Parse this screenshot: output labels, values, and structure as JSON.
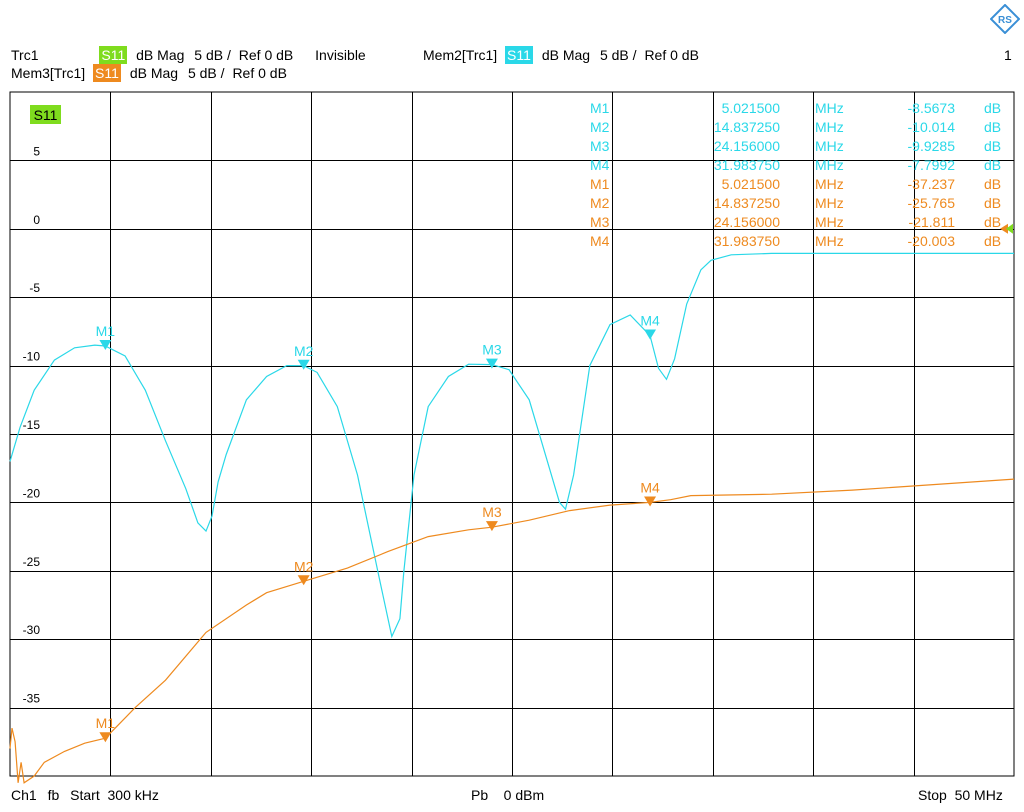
{
  "header": {
    "trc1": {
      "name": "Trc1",
      "badge": "S11",
      "badge_color": "#7fdc1e",
      "format": "dB Mag",
      "scale": "5 dB /",
      "ref": "Ref 0 dB",
      "state": "Invisible"
    },
    "mem2": {
      "name": "Mem2[Trc1]",
      "badge": "S11",
      "badge_color": "#2ad8e8",
      "format": "dB Mag",
      "scale": "5 dB /",
      "ref": "Ref 0 dB"
    },
    "mem3": {
      "name": "Mem3[Trc1]",
      "badge": "S11",
      "badge_color": "#ee8a1f",
      "format": "dB Mag",
      "scale": "5 dB /",
      "ref": "Ref 0 dB"
    },
    "window_number": "1",
    "logo": "rohde-schwarz-logo"
  },
  "footer": {
    "channel": "Ch1",
    "mode": "fb",
    "start": "Start  300 kHz",
    "power": "Pb    0 dBm",
    "stop": "Stop  50 MHz"
  },
  "chart_data": {
    "type": "line",
    "title": "",
    "xlabel": "",
    "ylabel": "",
    "x_unit": "MHz",
    "xlim": [
      0.3,
      50
    ],
    "ylim": [
      -40,
      10
    ],
    "yticks": [
      5,
      0,
      -5,
      -10,
      -15,
      -20,
      -25,
      -30,
      -35
    ],
    "grid": true,
    "active_trace_label": "S11",
    "series": [
      {
        "name": "Mem2[Trc1]",
        "color": "#2ad8e8",
        "x": [
          0.3,
          0.8,
          1.5,
          2.5,
          3.5,
          4.5,
          5.02,
          6.0,
          7.0,
          8.0,
          9.0,
          9.6,
          10.0,
          10.3,
          10.6,
          11.0,
          12.0,
          13.0,
          14.0,
          14.84,
          15.5,
          16.5,
          17.5,
          18.5,
          19.2,
          19.6,
          19.8,
          20.3,
          21.0,
          22.0,
          23.0,
          24.16,
          25.0,
          26.0,
          27.0,
          27.5,
          27.8,
          28.2,
          29.0,
          30.0,
          31.0,
          31.98,
          32.4,
          32.8,
          33.2,
          33.8,
          34.5,
          35.0,
          36.0,
          38.0,
          42.0,
          46.0,
          50.0
        ],
        "values": [
          -17.0,
          -14.5,
          -11.8,
          -9.6,
          -8.7,
          -8.5,
          -8.57,
          -9.3,
          -11.8,
          -15.5,
          -19.0,
          -21.5,
          -22.1,
          -21.0,
          -18.5,
          -16.5,
          -12.5,
          -10.8,
          -10.0,
          -10.01,
          -10.5,
          -13.0,
          -18.0,
          -25.0,
          -29.8,
          -28.5,
          -25.0,
          -18.0,
          -13.0,
          -10.8,
          -9.9,
          -9.93,
          -10.3,
          -12.5,
          -17.5,
          -20.0,
          -20.5,
          -18.0,
          -10.0,
          -7.0,
          -6.3,
          -7.8,
          -10.2,
          -11.0,
          -9.5,
          -5.5,
          -3.0,
          -2.3,
          -1.9,
          -1.8,
          -1.8,
          -1.8,
          -1.8
        ]
      },
      {
        "name": "Mem3[Trc1]",
        "color": "#ee8a1f",
        "x": [
          0.3,
          0.4,
          0.55,
          0.7,
          0.85,
          1.0,
          1.5,
          2.0,
          3.0,
          4.0,
          5.02,
          6.5,
          8.0,
          10.0,
          12.0,
          13.0,
          14.84,
          17.0,
          19.0,
          21.0,
          23.0,
          24.16,
          26.0,
          28.0,
          30.0,
          31.98,
          33.0,
          34.0,
          38.0,
          42.0,
          46.0,
          50.0
        ],
        "values": [
          -38.0,
          -36.5,
          -37.5,
          -40.5,
          -39.0,
          -40.5,
          -40.0,
          -39.0,
          -38.2,
          -37.6,
          -37.24,
          -35.0,
          -33.0,
          -29.5,
          -27.5,
          -26.6,
          -25.77,
          -24.8,
          -23.6,
          -22.5,
          -22.0,
          -21.81,
          -21.3,
          -20.6,
          -20.2,
          -20.0,
          -19.8,
          -19.5,
          -19.4,
          -19.1,
          -18.7,
          -18.3
        ]
      }
    ],
    "markers": [
      {
        "trace": "Mem2[Trc1]",
        "label": "M1",
        "x": 5.0215,
        "y": -8.5673
      },
      {
        "trace": "Mem2[Trc1]",
        "label": "M2",
        "x": 14.83725,
        "y": -10.014
      },
      {
        "trace": "Mem2[Trc1]",
        "label": "M3",
        "x": 24.156,
        "y": -9.9285
      },
      {
        "trace": "Mem2[Trc1]",
        "label": "M4",
        "x": 31.98375,
        "y": -7.7992
      },
      {
        "trace": "Mem3[Trc1]",
        "label": "M1",
        "x": 5.0215,
        "y": -37.237
      },
      {
        "trace": "Mem3[Trc1]",
        "label": "M2",
        "x": 14.83725,
        "y": -25.765
      },
      {
        "trace": "Mem3[Trc1]",
        "label": "M3",
        "x": 24.156,
        "y": -21.811
      },
      {
        "trace": "Mem3[Trc1]",
        "label": "M4",
        "x": 31.98375,
        "y": -20.003
      }
    ],
    "marker_table": [
      {
        "label": "M1",
        "freq": "5.021500",
        "unit": "MHz",
        "value": "-8.5673",
        "vunit": "dB",
        "color": "#2ad8e8"
      },
      {
        "label": "M2",
        "freq": "14.837250",
        "unit": "MHz",
        "value": "-10.014",
        "vunit": "dB",
        "color": "#2ad8e8"
      },
      {
        "label": "M3",
        "freq": "24.156000",
        "unit": "MHz",
        "value": "-9.9285",
        "vunit": "dB",
        "color": "#2ad8e8"
      },
      {
        "label": "M4",
        "freq": "31.983750",
        "unit": "MHz",
        "value": "-7.7992",
        "vunit": "dB",
        "color": "#2ad8e8"
      },
      {
        "label": "M1",
        "freq": "5.021500",
        "unit": "MHz",
        "value": "-37.237",
        "vunit": "dB",
        "color": "#ee8a1f"
      },
      {
        "label": "M2",
        "freq": "14.837250",
        "unit": "MHz",
        "value": "-25.765",
        "vunit": "dB",
        "color": "#ee8a1f"
      },
      {
        "label": "M3",
        "freq": "24.156000",
        "unit": "MHz",
        "value": "-21.811",
        "vunit": "dB",
        "color": "#ee8a1f"
      },
      {
        "label": "M4",
        "freq": "31.983750",
        "unit": "MHz",
        "value": "-20.003",
        "vunit": "dB",
        "color": "#ee8a1f"
      }
    ]
  }
}
